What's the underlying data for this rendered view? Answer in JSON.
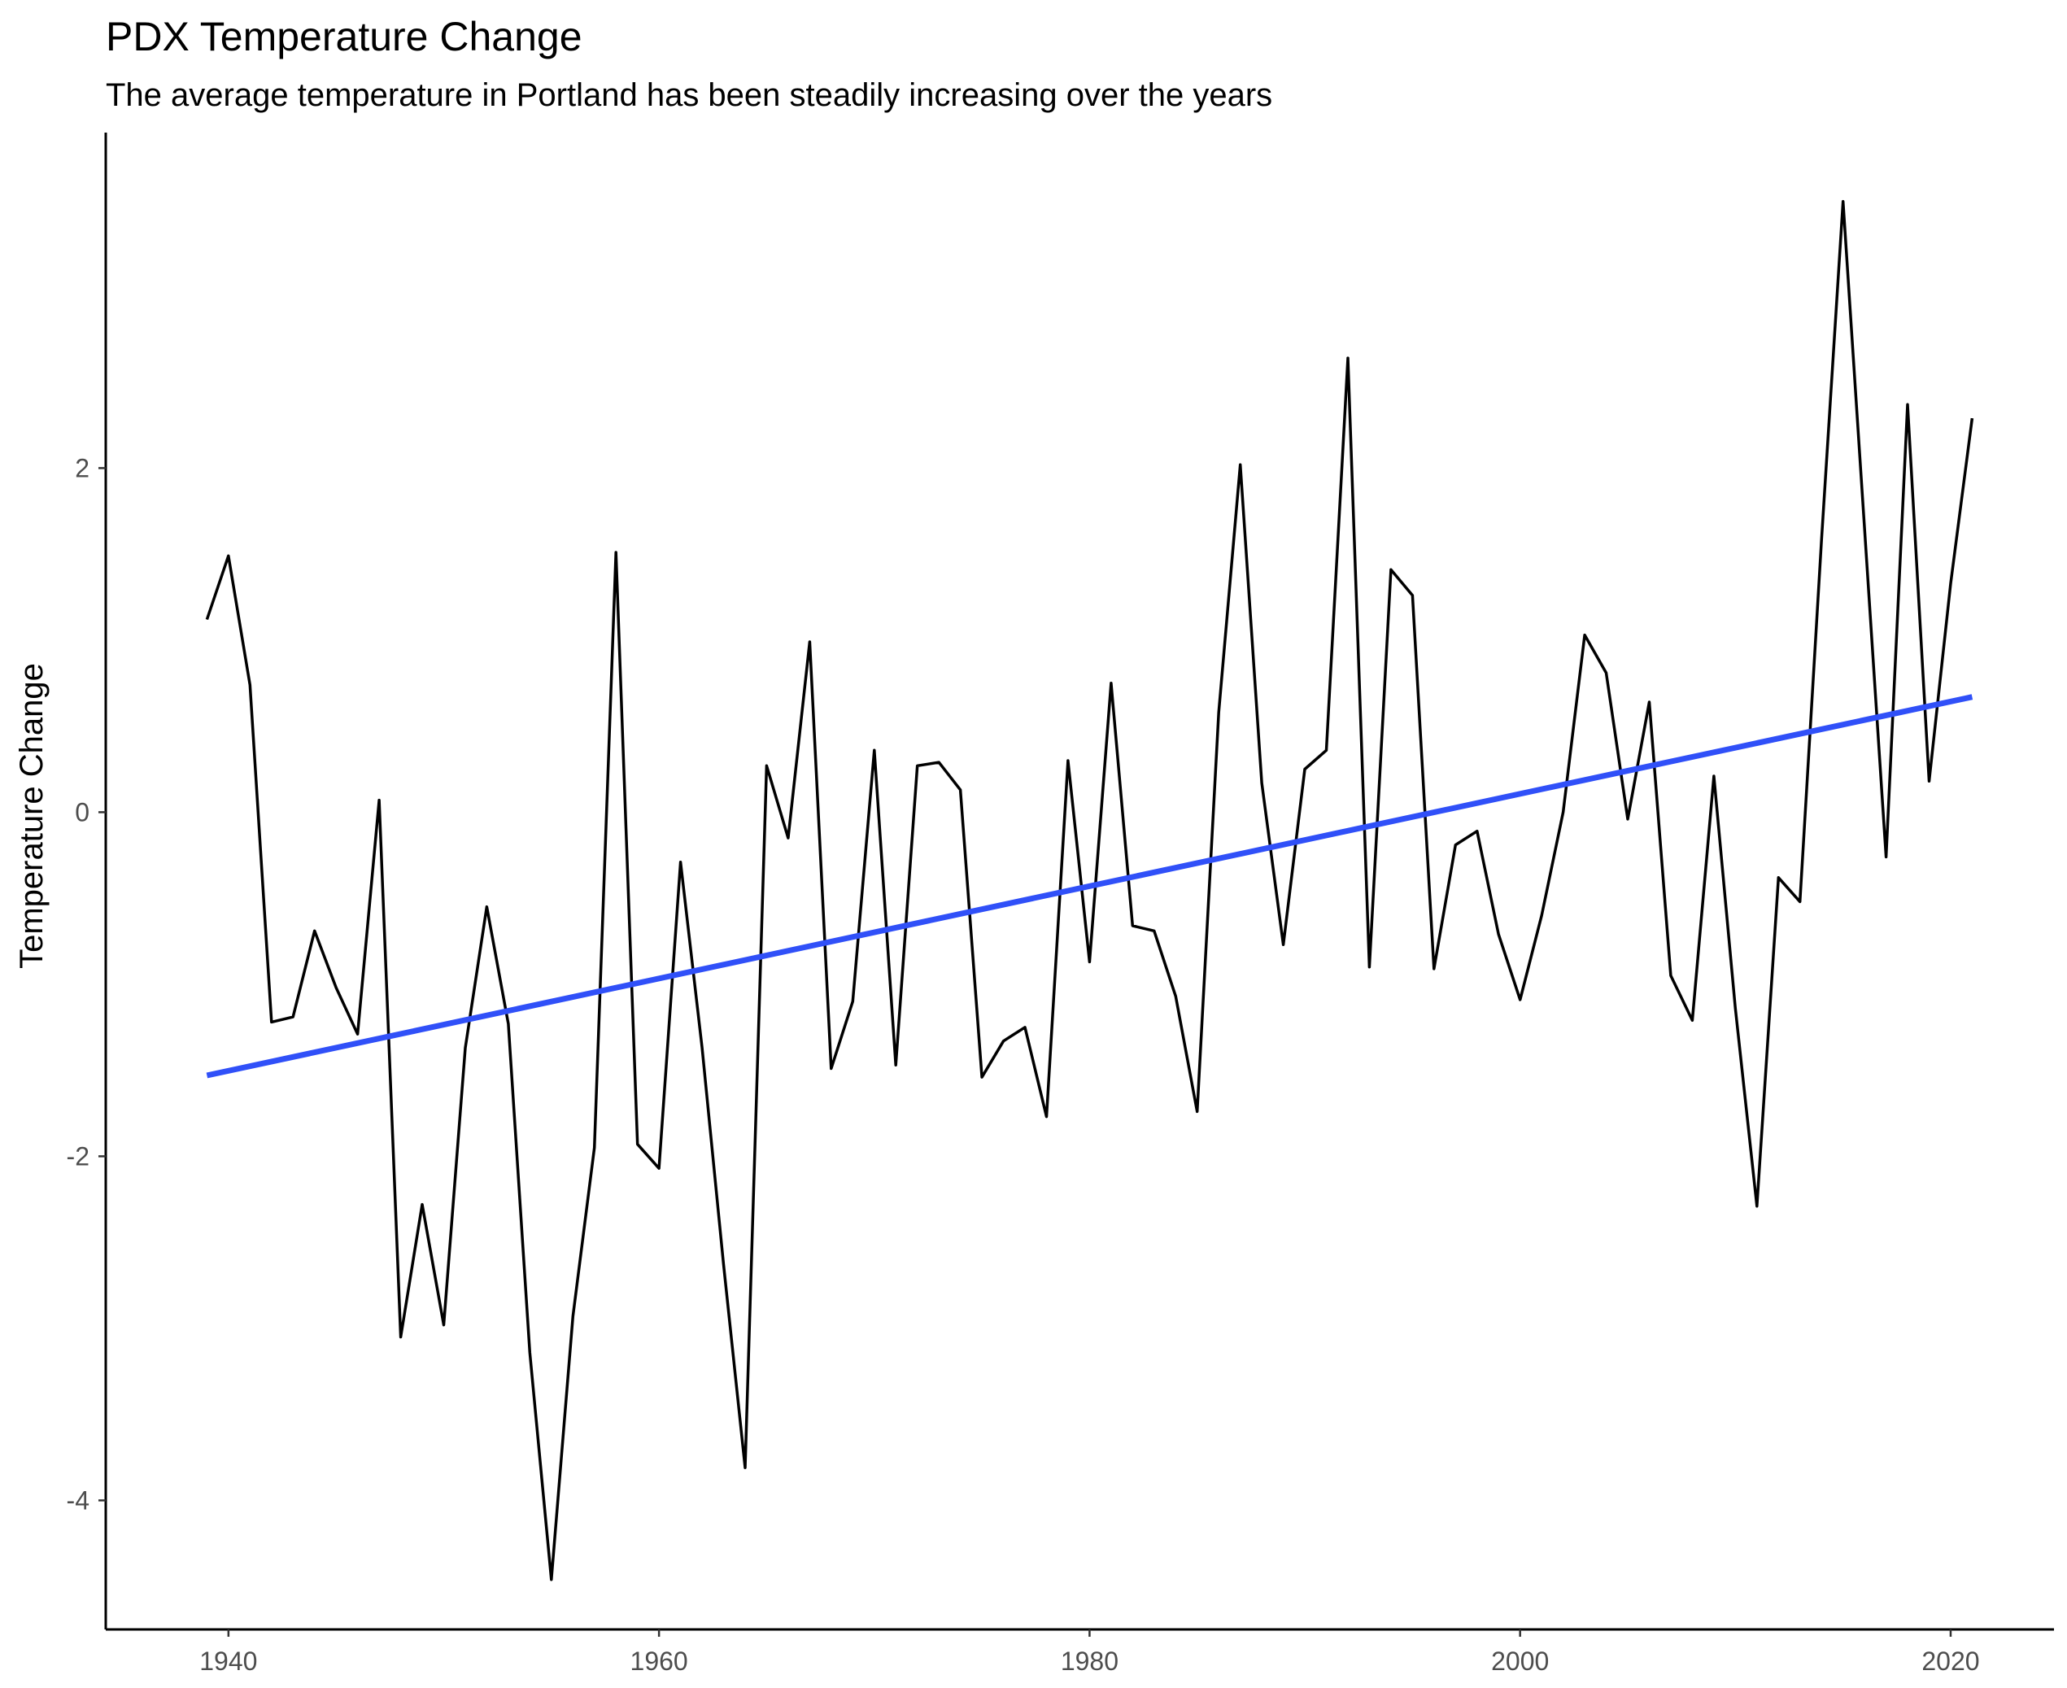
{
  "chart_data": {
    "type": "line",
    "title": "PDX Temperature Change",
    "subtitle": "The average temperature in Portland has been steadily increasing over the years",
    "xlabel": "",
    "ylabel": "Temperature Change",
    "xlim": [
      1934.3,
      2024.8
    ],
    "ylim": [
      -4.75,
      3.95
    ],
    "x_ticks": [
      1940,
      1960,
      1980,
      2000,
      2020
    ],
    "y_ticks": [
      -4,
      -2,
      0,
      2
    ],
    "grid": false,
    "legend": "none",
    "series": [
      {
        "color": "#000000",
        "x": [
          1939,
          1940,
          1941,
          1942,
          1943,
          1944,
          1945,
          1946,
          1947,
          1948,
          1949,
          1950,
          1951,
          1952,
          1953,
          1954,
          1955,
          1956,
          1957,
          1958,
          1959,
          1960,
          1961,
          1962,
          1963,
          1964,
          1965,
          1966,
          1967,
          1968,
          1969,
          1970,
          1971,
          1972,
          1973,
          1974,
          1975,
          1976,
          1977,
          1978,
          1979,
          1980,
          1981,
          1982,
          1983,
          1984,
          1985,
          1986,
          1987,
          1988,
          1989,
          1990,
          1991,
          1992,
          1993,
          1994,
          1995,
          1996,
          1997,
          1998,
          1999,
          2000,
          2001,
          2002,
          2003,
          2004,
          2005,
          2006,
          2007,
          2008,
          2009,
          2010,
          2011,
          2012,
          2013,
          2014,
          2015,
          2016,
          2017,
          2018,
          2019,
          2020,
          2021
        ],
        "y": [
          1.12,
          1.49,
          0.74,
          -1.22,
          -1.19,
          -0.69,
          -1.02,
          -1.29,
          0.07,
          -3.05,
          -2.28,
          -2.98,
          -1.37,
          -0.55,
          -1.23,
          -3.14,
          -4.46,
          -2.93,
          -1.95,
          1.51,
          -1.93,
          -2.07,
          -0.29,
          -1.37,
          -2.63,
          -3.81,
          0.27,
          -0.15,
          0.99,
          -1.49,
          -1.1,
          0.36,
          -1.47,
          0.27,
          0.29,
          0.13,
          -1.54,
          -1.33,
          -1.25,
          -1.77,
          0.3,
          -0.87,
          0.75,
          -0.66,
          -0.69,
          -1.07,
          -1.74,
          0.58,
          2.02,
          0.17,
          -0.77,
          0.25,
          0.36,
          2.64,
          -0.9,
          1.41,
          1.26,
          -0.91,
          -0.19,
          -0.11,
          -0.71,
          -1.09,
          -0.6,
          0.0,
          1.03,
          0.81,
          -0.04,
          0.64,
          -0.95,
          -1.21,
          0.21,
          -1.14,
          -2.29,
          -0.38,
          -0.52,
          1.58,
          3.55,
          1.65,
          -0.26,
          2.37,
          0.18,
          1.33,
          2.29
        ]
      },
      {
        "color": "#3050f8",
        "x": [
          1939,
          2021
        ],
        "y": [
          -1.53,
          0.67
        ]
      }
    ]
  }
}
